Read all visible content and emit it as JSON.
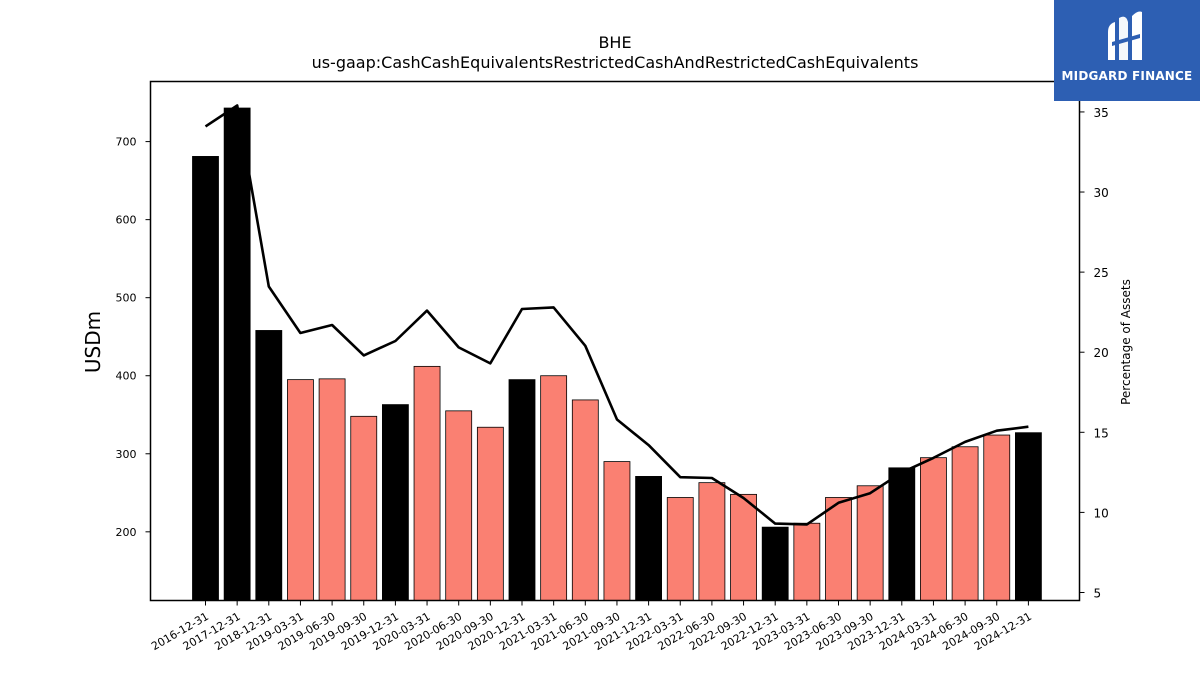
{
  "brand": {
    "name": "MIDGARD FINANCE",
    "color": "#2d5fb3",
    "icon": "midgard-logo-icon"
  },
  "chart_data": {
    "type": "bar",
    "title": "BHE",
    "subtitle": "us-gaap:CashCashEquivalentsRestrictedCashAndRestrictedCashEquivalents",
    "ylabel": "USDm",
    "y2label": "Percentage of Assets",
    "ylim": [
      112,
      777
    ],
    "y2lim": [
      4.5,
      36.9
    ],
    "yticks": [
      200,
      300,
      400,
      500,
      600,
      700
    ],
    "y2ticks": [
      5,
      10,
      15,
      20,
      25,
      30,
      35
    ],
    "colors": {
      "annual": "#000000",
      "quarterly": "#fa8072",
      "line": "#000000"
    },
    "categories": [
      "2016-12-31",
      "2017-12-31",
      "2018-12-31",
      "2019-03-31",
      "2019-06-30",
      "2019-09-30",
      "2019-12-31",
      "2020-03-31",
      "2020-06-30",
      "2020-09-30",
      "2020-12-31",
      "2021-03-31",
      "2021-06-30",
      "2021-09-30",
      "2021-12-31",
      "2022-03-31",
      "2022-06-30",
      "2022-09-30",
      "2022-12-31",
      "2023-03-31",
      "2023-06-30",
      "2023-09-30",
      "2023-12-31",
      "2024-03-31",
      "2024-06-30",
      "2024-09-30",
      "2024-12-31"
    ],
    "series": [
      {
        "name": "",
        "kind": "bar",
        "axis": "left",
        "values": [
          681,
          743,
          458,
          395,
          396,
          348,
          363,
          412,
          355,
          334,
          395,
          400,
          369,
          290,
          271,
          244,
          263,
          248,
          206,
          211,
          244,
          259,
          282,
          295,
          309,
          324,
          327
        ],
        "period": [
          "annual",
          "annual",
          "annual",
          "quarterly",
          "quarterly",
          "quarterly",
          "annual",
          "quarterly",
          "quarterly",
          "quarterly",
          "annual",
          "quarterly",
          "quarterly",
          "quarterly",
          "annual",
          "quarterly",
          "quarterly",
          "quarterly",
          "annual",
          "quarterly",
          "quarterly",
          "quarterly",
          "annual",
          "quarterly",
          "quarterly",
          "quarterly",
          "annual"
        ]
      },
      {
        "name": "",
        "kind": "line",
        "axis": "right",
        "values": [
          34.1,
          35.4,
          24.1,
          21.2,
          21.7,
          19.8,
          20.7,
          22.6,
          20.3,
          19.3,
          22.7,
          22.8,
          20.4,
          15.8,
          14.2,
          12.2,
          12.15,
          10.9,
          9.3,
          9.25,
          10.6,
          11.2,
          12.5,
          13.4,
          14.4,
          15.1,
          15.35
        ]
      }
    ],
    "grid": false,
    "legend": "none"
  }
}
